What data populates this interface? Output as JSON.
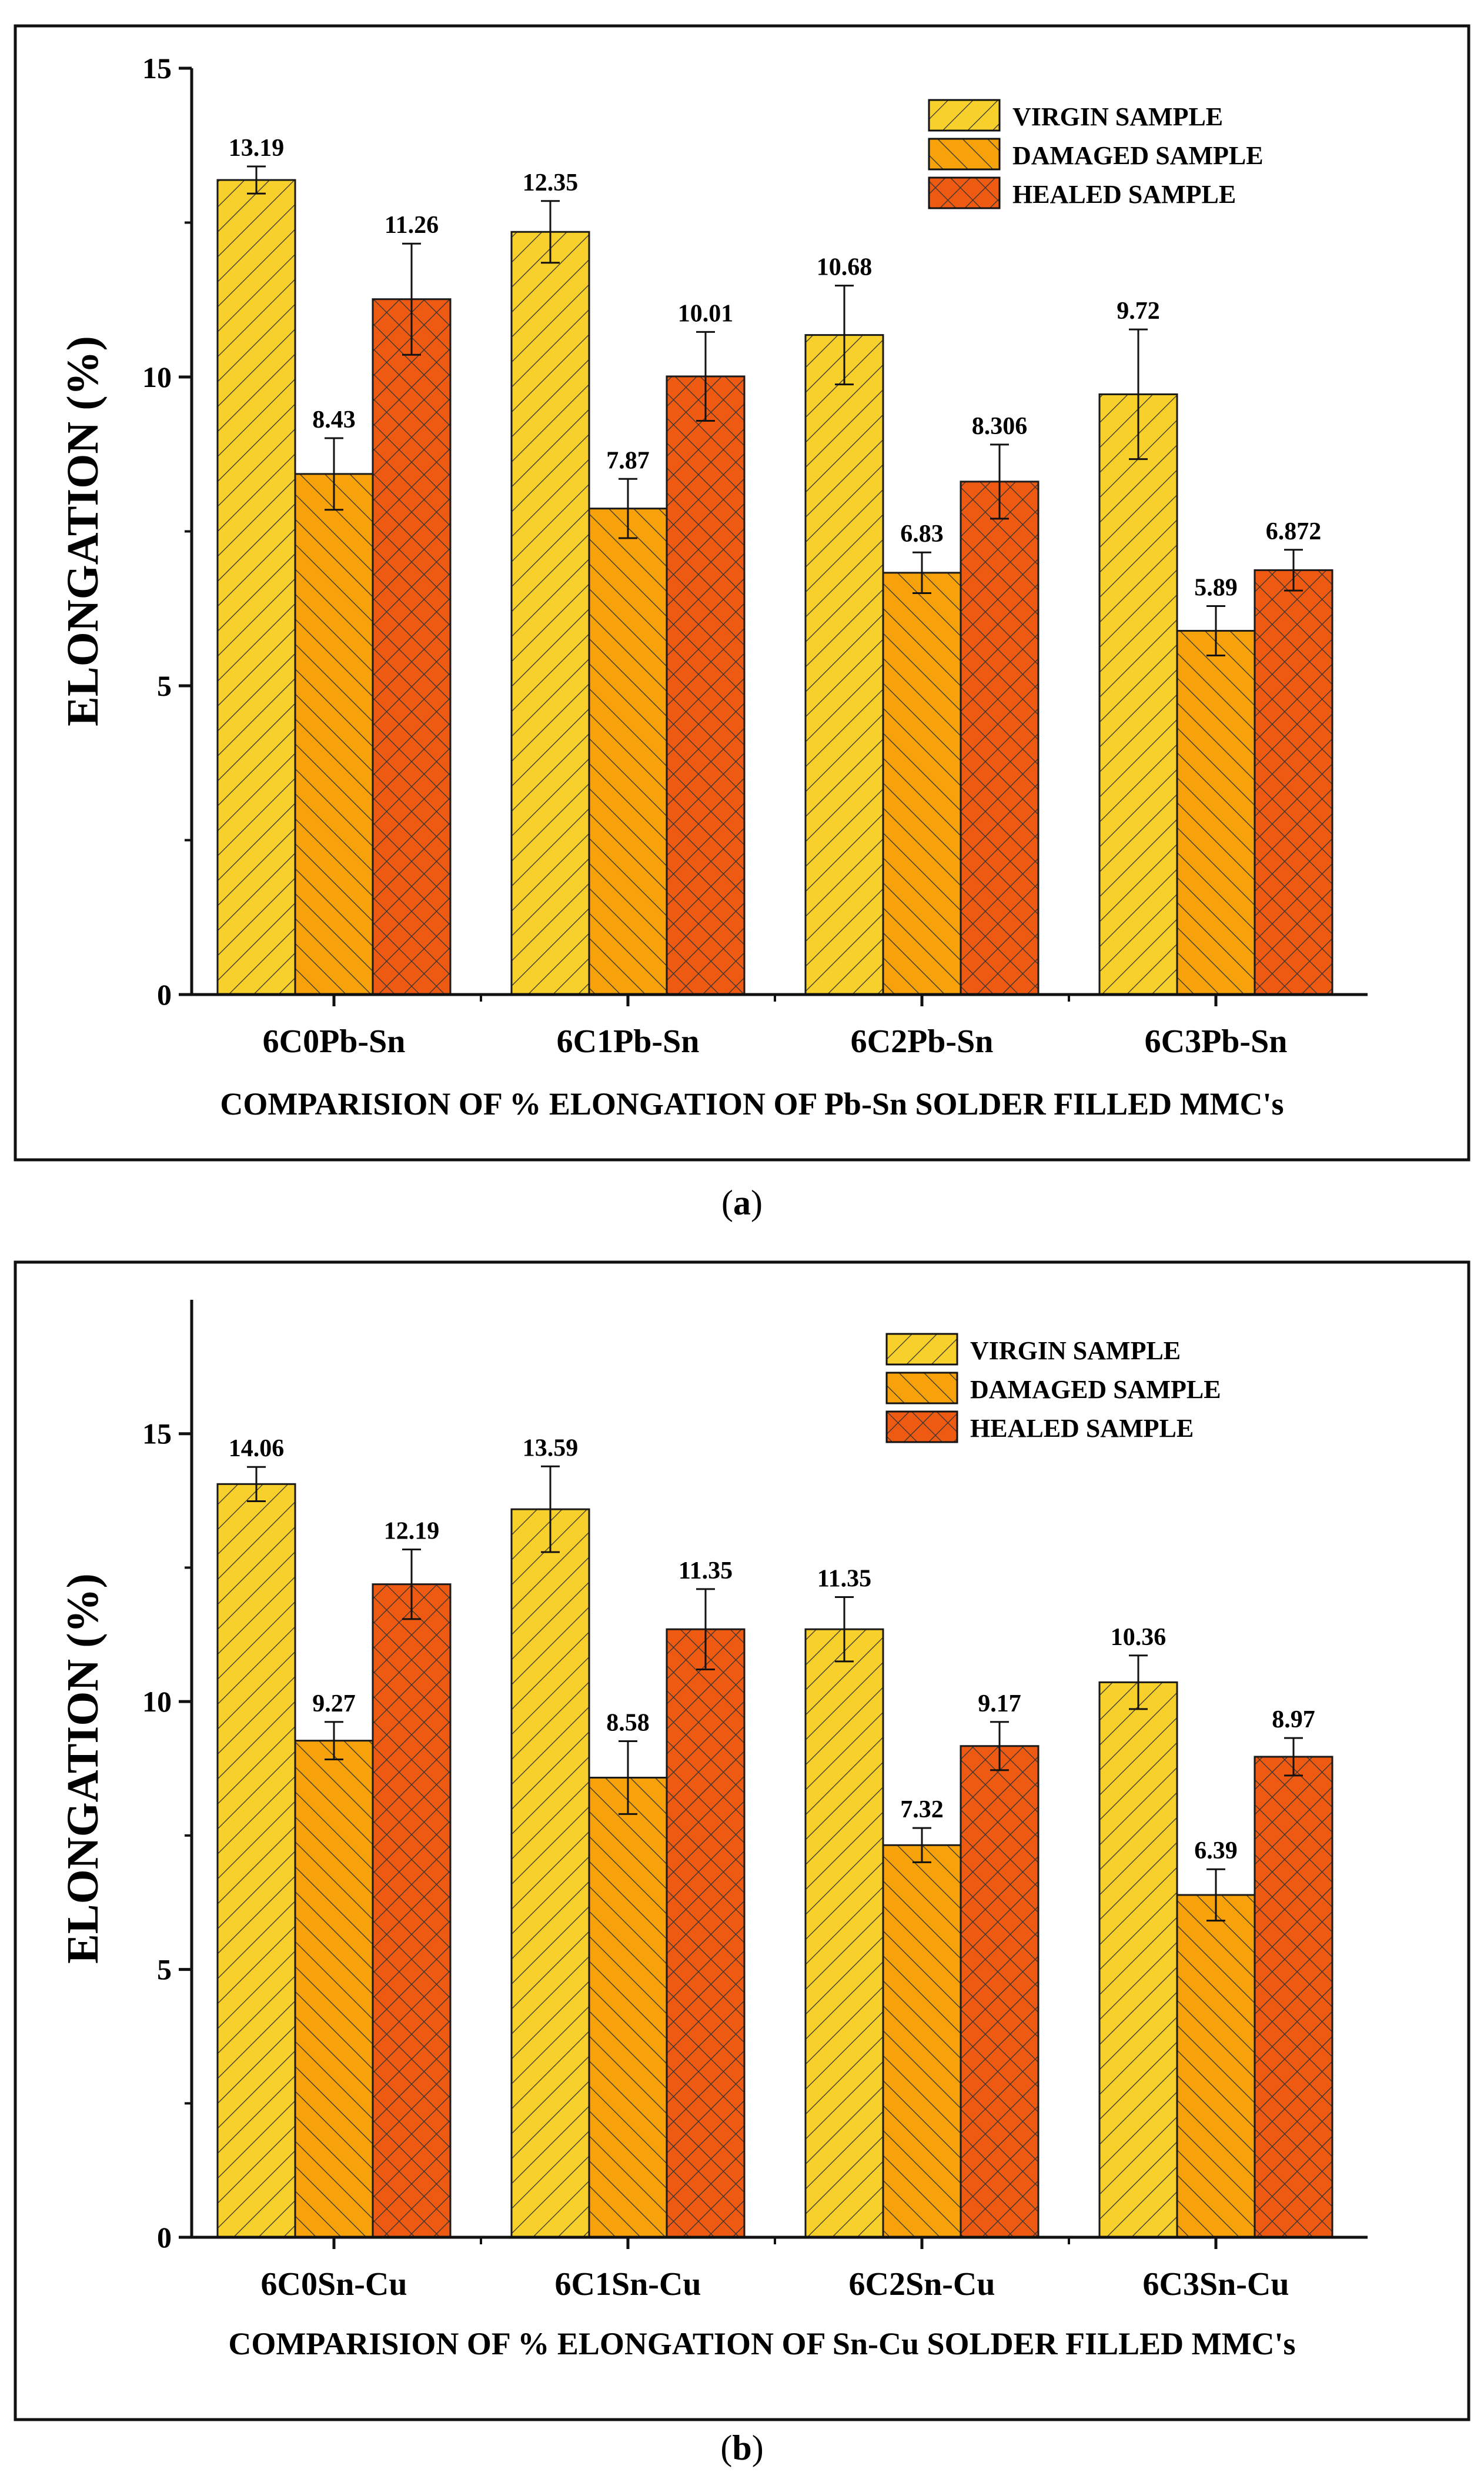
{
  "legend_labels": [
    "VIRGIN SAMPLE",
    "DAMAGED SAMPLE",
    "HEALED SAMPLE"
  ],
  "colors": {
    "virgin": "#f8d02c",
    "damaged": "#f7a20a",
    "healed": "#ee5a12",
    "stroke": "#1a1a1a",
    "hatch": "#333333"
  },
  "chart_data": [
    {
      "type": "bar",
      "panel_label": "a",
      "title": "",
      "xlabel": "COMPARISION OF % ELONGATION OF Pb-Sn SOLDER FILLED MMC's",
      "ylabel": "ELONGATION  (%)",
      "ylim": [
        0,
        15
      ],
      "yticks": [
        "0",
        "5",
        "10",
        "15"
      ],
      "categories": [
        "6C0Pb-Sn",
        "6C1Pb-Sn",
        "6C2Pb-Sn",
        "6C3Pb-Sn"
      ],
      "legend_position": "top-right",
      "series": [
        {
          "name": "VIRGIN SAMPLE",
          "values": [
            13.19,
            12.35,
            10.68,
            9.72
          ],
          "labels": [
            "13.19",
            "12.35",
            "10.68",
            "9.72"
          ],
          "errors": [
            0.22,
            0.5,
            0.8,
            1.05
          ]
        },
        {
          "name": "DAMAGED SAMPLE",
          "values": [
            8.43,
            7.87,
            6.83,
            5.89
          ],
          "labels": [
            "8.43",
            "7.87",
            "6.83",
            "5.89"
          ],
          "errors": [
            0.58,
            0.48,
            0.33,
            0.4
          ]
        },
        {
          "name": "HEALED SAMPLE",
          "values": [
            11.26,
            10.01,
            8.306,
            6.872
          ],
          "labels": [
            "11.26",
            "10.01",
            "8.306",
            "6.872"
          ],
          "errors": [
            0.9,
            0.72,
            0.6,
            0.33
          ]
        }
      ]
    },
    {
      "type": "bar",
      "panel_label": "b",
      "title": "",
      "xlabel": "COMPARISION OF % ELONGATION OF Sn-Cu SOLDER FILLED MMC's",
      "ylabel": "ELONGATION  (%)",
      "ylim": [
        0,
        17.5
      ],
      "yticks": [
        "0",
        "5",
        "10",
        "15"
      ],
      "categories": [
        "6C0Sn-Cu",
        "6C1Sn-Cu",
        "6C2Sn-Cu",
        "6C3Sn-Cu"
      ],
      "legend_position": "top-right",
      "series": [
        {
          "name": "VIRGIN SAMPLE",
          "values": [
            14.06,
            13.59,
            11.35,
            10.36
          ],
          "labels": [
            "14.06",
            "13.59",
            "11.35",
            "10.36"
          ],
          "errors": [
            0.32,
            0.8,
            0.6,
            0.5
          ]
        },
        {
          "name": "DAMAGED SAMPLE",
          "values": [
            9.27,
            8.58,
            7.32,
            6.39
          ],
          "labels": [
            "9.27",
            "8.58",
            "7.32",
            "6.39"
          ],
          "errors": [
            0.35,
            0.68,
            0.32,
            0.48
          ]
        },
        {
          "name": "HEALED SAMPLE",
          "values": [
            12.19,
            11.35,
            9.17,
            8.97
          ],
          "labels": [
            "12.19",
            "11.35",
            "9.17",
            "8.97"
          ],
          "errors": [
            0.65,
            0.75,
            0.45,
            0.35
          ]
        }
      ]
    }
  ]
}
